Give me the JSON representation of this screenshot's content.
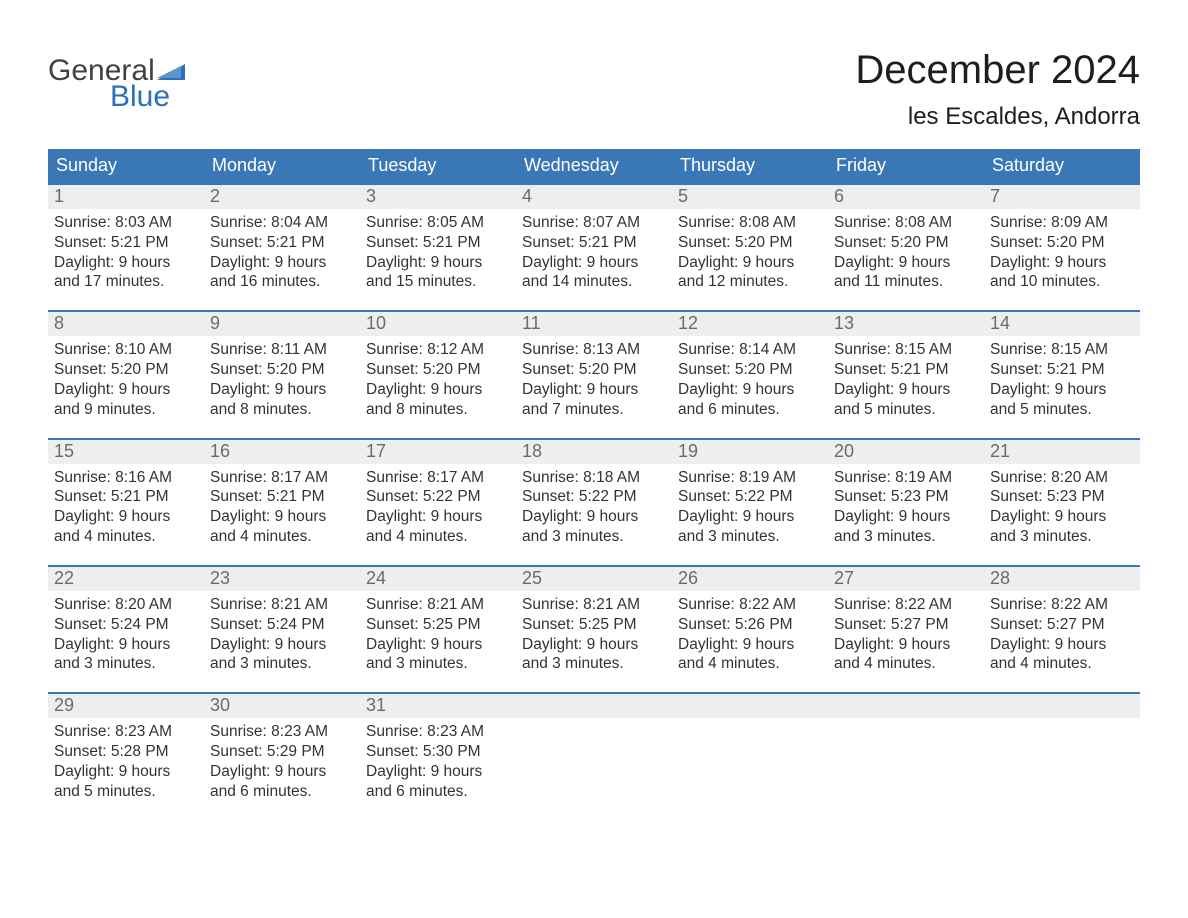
{
  "brand": {
    "line1": "General",
    "line2": "Blue",
    "flag_color": "#2b71b8",
    "text_dark": "#414141"
  },
  "title": "December 2024",
  "location": "les Escaldes, Andorra",
  "colors": {
    "header_bg": "#3a77b7",
    "header_text": "#ffffff",
    "daynum_bg": "#eeeeee",
    "daynum_text": "#6b6b6b",
    "body_text": "#333333",
    "week_border": "#3a77b7",
    "page_bg": "#ffffff"
  },
  "days_of_week": [
    "Sunday",
    "Monday",
    "Tuesday",
    "Wednesday",
    "Thursday",
    "Friday",
    "Saturday"
  ],
  "weeks": [
    [
      {
        "n": "1",
        "sunrise": "Sunrise: 8:03 AM",
        "sunset": "Sunset: 5:21 PM",
        "dl1": "Daylight: 9 hours",
        "dl2": "and 17 minutes."
      },
      {
        "n": "2",
        "sunrise": "Sunrise: 8:04 AM",
        "sunset": "Sunset: 5:21 PM",
        "dl1": "Daylight: 9 hours",
        "dl2": "and 16 minutes."
      },
      {
        "n": "3",
        "sunrise": "Sunrise: 8:05 AM",
        "sunset": "Sunset: 5:21 PM",
        "dl1": "Daylight: 9 hours",
        "dl2": "and 15 minutes."
      },
      {
        "n": "4",
        "sunrise": "Sunrise: 8:07 AM",
        "sunset": "Sunset: 5:21 PM",
        "dl1": "Daylight: 9 hours",
        "dl2": "and 14 minutes."
      },
      {
        "n": "5",
        "sunrise": "Sunrise: 8:08 AM",
        "sunset": "Sunset: 5:20 PM",
        "dl1": "Daylight: 9 hours",
        "dl2": "and 12 minutes."
      },
      {
        "n": "6",
        "sunrise": "Sunrise: 8:08 AM",
        "sunset": "Sunset: 5:20 PM",
        "dl1": "Daylight: 9 hours",
        "dl2": "and 11 minutes."
      },
      {
        "n": "7",
        "sunrise": "Sunrise: 8:09 AM",
        "sunset": "Sunset: 5:20 PM",
        "dl1": "Daylight: 9 hours",
        "dl2": "and 10 minutes."
      }
    ],
    [
      {
        "n": "8",
        "sunrise": "Sunrise: 8:10 AM",
        "sunset": "Sunset: 5:20 PM",
        "dl1": "Daylight: 9 hours",
        "dl2": "and 9 minutes."
      },
      {
        "n": "9",
        "sunrise": "Sunrise: 8:11 AM",
        "sunset": "Sunset: 5:20 PM",
        "dl1": "Daylight: 9 hours",
        "dl2": "and 8 minutes."
      },
      {
        "n": "10",
        "sunrise": "Sunrise: 8:12 AM",
        "sunset": "Sunset: 5:20 PM",
        "dl1": "Daylight: 9 hours",
        "dl2": "and 8 minutes."
      },
      {
        "n": "11",
        "sunrise": "Sunrise: 8:13 AM",
        "sunset": "Sunset: 5:20 PM",
        "dl1": "Daylight: 9 hours",
        "dl2": "and 7 minutes."
      },
      {
        "n": "12",
        "sunrise": "Sunrise: 8:14 AM",
        "sunset": "Sunset: 5:20 PM",
        "dl1": "Daylight: 9 hours",
        "dl2": "and 6 minutes."
      },
      {
        "n": "13",
        "sunrise": "Sunrise: 8:15 AM",
        "sunset": "Sunset: 5:21 PM",
        "dl1": "Daylight: 9 hours",
        "dl2": "and 5 minutes."
      },
      {
        "n": "14",
        "sunrise": "Sunrise: 8:15 AM",
        "sunset": "Sunset: 5:21 PM",
        "dl1": "Daylight: 9 hours",
        "dl2": "and 5 minutes."
      }
    ],
    [
      {
        "n": "15",
        "sunrise": "Sunrise: 8:16 AM",
        "sunset": "Sunset: 5:21 PM",
        "dl1": "Daylight: 9 hours",
        "dl2": "and 4 minutes."
      },
      {
        "n": "16",
        "sunrise": "Sunrise: 8:17 AM",
        "sunset": "Sunset: 5:21 PM",
        "dl1": "Daylight: 9 hours",
        "dl2": "and 4 minutes."
      },
      {
        "n": "17",
        "sunrise": "Sunrise: 8:17 AM",
        "sunset": "Sunset: 5:22 PM",
        "dl1": "Daylight: 9 hours",
        "dl2": "and 4 minutes."
      },
      {
        "n": "18",
        "sunrise": "Sunrise: 8:18 AM",
        "sunset": "Sunset: 5:22 PM",
        "dl1": "Daylight: 9 hours",
        "dl2": "and 3 minutes."
      },
      {
        "n": "19",
        "sunrise": "Sunrise: 8:19 AM",
        "sunset": "Sunset: 5:22 PM",
        "dl1": "Daylight: 9 hours",
        "dl2": "and 3 minutes."
      },
      {
        "n": "20",
        "sunrise": "Sunrise: 8:19 AM",
        "sunset": "Sunset: 5:23 PM",
        "dl1": "Daylight: 9 hours",
        "dl2": "and 3 minutes."
      },
      {
        "n": "21",
        "sunrise": "Sunrise: 8:20 AM",
        "sunset": "Sunset: 5:23 PM",
        "dl1": "Daylight: 9 hours",
        "dl2": "and 3 minutes."
      }
    ],
    [
      {
        "n": "22",
        "sunrise": "Sunrise: 8:20 AM",
        "sunset": "Sunset: 5:24 PM",
        "dl1": "Daylight: 9 hours",
        "dl2": "and 3 minutes."
      },
      {
        "n": "23",
        "sunrise": "Sunrise: 8:21 AM",
        "sunset": "Sunset: 5:24 PM",
        "dl1": "Daylight: 9 hours",
        "dl2": "and 3 minutes."
      },
      {
        "n": "24",
        "sunrise": "Sunrise: 8:21 AM",
        "sunset": "Sunset: 5:25 PM",
        "dl1": "Daylight: 9 hours",
        "dl2": "and 3 minutes."
      },
      {
        "n": "25",
        "sunrise": "Sunrise: 8:21 AM",
        "sunset": "Sunset: 5:25 PM",
        "dl1": "Daylight: 9 hours",
        "dl2": "and 3 minutes."
      },
      {
        "n": "26",
        "sunrise": "Sunrise: 8:22 AM",
        "sunset": "Sunset: 5:26 PM",
        "dl1": "Daylight: 9 hours",
        "dl2": "and 4 minutes."
      },
      {
        "n": "27",
        "sunrise": "Sunrise: 8:22 AM",
        "sunset": "Sunset: 5:27 PM",
        "dl1": "Daylight: 9 hours",
        "dl2": "and 4 minutes."
      },
      {
        "n": "28",
        "sunrise": "Sunrise: 8:22 AM",
        "sunset": "Sunset: 5:27 PM",
        "dl1": "Daylight: 9 hours",
        "dl2": "and 4 minutes."
      }
    ],
    [
      {
        "n": "29",
        "sunrise": "Sunrise: 8:23 AM",
        "sunset": "Sunset: 5:28 PM",
        "dl1": "Daylight: 9 hours",
        "dl2": "and 5 minutes."
      },
      {
        "n": "30",
        "sunrise": "Sunrise: 8:23 AM",
        "sunset": "Sunset: 5:29 PM",
        "dl1": "Daylight: 9 hours",
        "dl2": "and 6 minutes."
      },
      {
        "n": "31",
        "sunrise": "Sunrise: 8:23 AM",
        "sunset": "Sunset: 5:30 PM",
        "dl1": "Daylight: 9 hours",
        "dl2": "and 6 minutes."
      },
      {
        "n": "",
        "sunrise": "",
        "sunset": "",
        "dl1": "",
        "dl2": ""
      },
      {
        "n": "",
        "sunrise": "",
        "sunset": "",
        "dl1": "",
        "dl2": ""
      },
      {
        "n": "",
        "sunrise": "",
        "sunset": "",
        "dl1": "",
        "dl2": ""
      },
      {
        "n": "",
        "sunrise": "",
        "sunset": "",
        "dl1": "",
        "dl2": ""
      }
    ]
  ]
}
